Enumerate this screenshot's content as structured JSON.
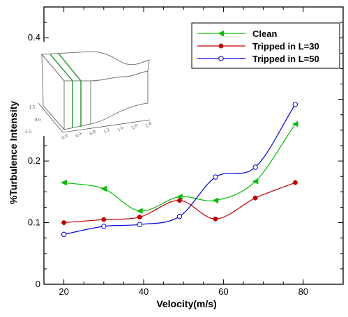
{
  "chart_data": {
    "type": "line",
    "xlabel": "Velocity(m/s)",
    "ylabel": "%Turbulence Intensity",
    "xlim": [
      15,
      90
    ],
    "ylim": [
      0,
      0.45
    ],
    "xticks": [
      20,
      40,
      60,
      80
    ],
    "yticks": [
      0,
      0.1,
      0.2,
      0.4
    ],
    "ytick_labels": [
      "0",
      "0.1",
      "0.2",
      "0.4"
    ],
    "grid": false,
    "legend_position": "top-right",
    "series": [
      {
        "name": "Clean",
        "color": "#00c000",
        "marker": "left-triangle",
        "x": [
          20,
          30,
          39,
          49,
          58,
          68,
          78
        ],
        "y": [
          0.165,
          0.155,
          0.119,
          0.142,
          0.136,
          0.167,
          0.26
        ]
      },
      {
        "name": "Tripped in L=30",
        "color": "#c00000",
        "marker": "filled-circle",
        "x": [
          20,
          30,
          39,
          49,
          58,
          68,
          78
        ],
        "y": [
          0.1,
          0.105,
          0.109,
          0.136,
          0.106,
          0.14,
          0.165
        ]
      },
      {
        "name": "Tripped in L=50",
        "color": "#0000e0",
        "marker": "open-circle",
        "x": [
          20,
          30,
          39,
          49,
          58,
          68,
          78
        ],
        "y": [
          0.081,
          0.094,
          0.097,
          0.11,
          0.174,
          0.19,
          0.292
        ]
      }
    ]
  },
  "inset": {
    "icon": "wind-tunnel-contraction-sketch",
    "y_ticks": [
      "1.5",
      "0.0",
      "-1.5"
    ],
    "x_ticks": [
      "0.0",
      "0.4",
      "0.8",
      "1.2",
      "1.6",
      "2.0",
      "2.4"
    ],
    "trip_line_color": "#3aa040"
  }
}
